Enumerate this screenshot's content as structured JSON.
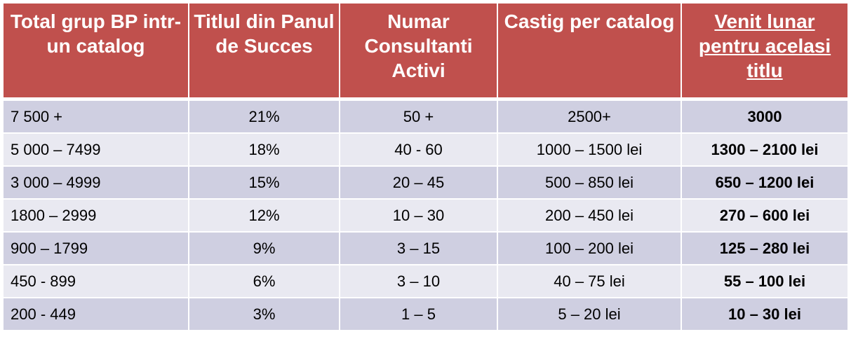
{
  "header": {
    "col1": "Total grup BP intr-un catalog",
    "col2": "Titlul din Panul de Succes",
    "col3": "Numar Consultanti Activi",
    "col4": "Castig per catalog",
    "col5": "Venit lunar pentru acelasi titlu"
  },
  "rows": [
    {
      "group": "7 500 +",
      "title": "21%",
      "consultants": "50 +",
      "earning": "2500+",
      "income": "3000"
    },
    {
      "group": "5 000 – 7499",
      "title": "18%",
      "consultants": "40 - 60",
      "earning": "1000 – 1500 lei",
      "income": "1300 – 2100 lei"
    },
    {
      "group": "3 000 – 4999",
      "title": "15%",
      "consultants": "20 – 45",
      "earning": "500 – 850 lei",
      "income": "650 – 1200 lei"
    },
    {
      "group": "1800 – 2999",
      "title": "12%",
      "consultants": "10 – 30",
      "earning": "200 – 450 lei",
      "income": "270 – 600 lei"
    },
    {
      "group": " 900 – 1799",
      "title": "9%",
      "consultants": "3 – 15",
      "earning": "100 – 200 lei",
      "income": "125 – 280 lei"
    },
    {
      "group": " 450 - 899",
      "title": "6%",
      "consultants": "3 – 10",
      "earning": "40 – 75 lei",
      "income": "55 – 100 lei"
    },
    {
      "group": " 200 - 449",
      "title": "3%",
      "consultants": "1 – 5",
      "earning": "5 – 20 lei",
      "income": "10 – 30 lei"
    }
  ],
  "colors": {
    "header_bg": "#c0504d",
    "row_odd": "#cfcfe1",
    "row_even": "#e9e9f1"
  }
}
